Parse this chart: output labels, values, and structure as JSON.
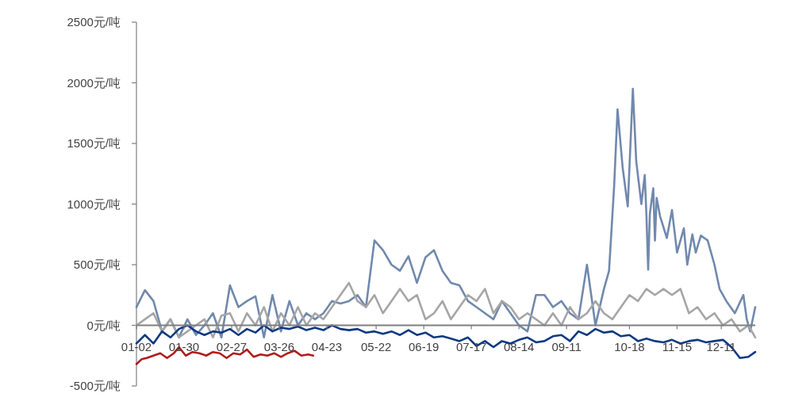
{
  "chart_data": {
    "type": "line",
    "x": [
      "--01-02",
      "--01-07",
      "--01-12",
      "--01-17",
      "--01-22",
      "--01-27",
      "--02-01",
      "--02-06",
      "--02-11",
      "--02-16",
      "--02-21",
      "--02-26",
      "--03-02",
      "--03-07",
      "--03-12",
      "--03-17",
      "--03-22",
      "--03-27",
      "--04-01",
      "--04-06",
      "--04-11",
      "--04-16",
      "--04-21",
      "--04-26",
      "--05-01",
      "--05-06",
      "--05-11",
      "--05-16",
      "--05-21",
      "--05-26",
      "--05-31",
      "--06-05",
      "--06-10",
      "--06-15",
      "--06-20",
      "--06-25",
      "--06-30",
      "--07-05",
      "--07-10",
      "--07-15",
      "--07-20",
      "--07-25",
      "--07-30",
      "--08-04",
      "--08-09",
      "--08-14",
      "--08-19",
      "--08-24",
      "--08-29",
      "--09-03",
      "--09-08",
      "--09-13",
      "--09-18",
      "--09-23",
      "--09-28",
      "--10-03",
      "--10-08",
      "--10-13",
      "--10-18",
      "--10-23",
      "--10-28",
      "--11-02",
      "--11-07",
      "--11-12",
      "--11-17",
      "--11-22",
      "--11-27",
      "--12-02",
      "--12-07",
      "--12-12",
      "--12-17",
      "--12-22",
      "--12-27",
      "--12-31"
    ],
    "series": [
      {
        "color": "#7189ad",
        "x": [
          "--01-02",
          "--01-07",
          "--01-12",
          "--01-17",
          "--01-22",
          "--01-27",
          "--02-01",
          "--02-06",
          "--02-11",
          "--02-16",
          "--02-21",
          "--02-26",
          "--03-02",
          "--03-07",
          "--03-12",
          "--03-17",
          "--03-22",
          "--03-27",
          "--04-01",
          "--04-06",
          "--04-11",
          "--04-16",
          "--04-21",
          "--04-26",
          "--05-01",
          "--05-06",
          "--05-11",
          "--05-16",
          "--05-21",
          "--05-26",
          "--05-31",
          "--06-05",
          "--06-10",
          "--06-15",
          "--06-20",
          "--06-25",
          "--06-30",
          "--07-05",
          "--07-10",
          "--07-15",
          "--07-20",
          "--07-25",
          "--07-30",
          "--08-04",
          "--08-09",
          "--08-14",
          "--08-19",
          "--08-24",
          "--08-29",
          "--09-03",
          "--09-08",
          "--09-13",
          "--09-18",
          "--09-23",
          "--09-28",
          "--10-03",
          "--10-06",
          "--10-09",
          "--10-11",
          "--10-14",
          "--10-17",
          "--10-20",
          "--10-22",
          "--10-25",
          "--10-27",
          "--10-28",
          "--10-29",
          "--10-30",
          "--11-01",
          "--11-02",
          "--11-03",
          "--11-05",
          "--11-09",
          "--11-12",
          "--11-15",
          "--11-19",
          "--11-21",
          "--11-24",
          "--11-26",
          "--11-29",
          "--12-03",
          "--12-07",
          "--12-10",
          "--12-14",
          "--12-19",
          "--12-24",
          "--12-26",
          "--12-28",
          "--12-31"
        ],
        "values": [
          150,
          290,
          200,
          -50,
          50,
          -100,
          50,
          -80,
          0,
          100,
          -100,
          330,
          150,
          200,
          240,
          -100,
          250,
          -50,
          200,
          0,
          100,
          50,
          100,
          200,
          180,
          200,
          250,
          150,
          700,
          620,
          500,
          450,
          570,
          350,
          560,
          620,
          450,
          350,
          330,
          200,
          150,
          100,
          50,
          200,
          100,
          0,
          -50,
          250,
          250,
          150,
          200,
          100,
          50,
          500,
          0,
          300,
          450,
          1150,
          1780,
          1300,
          980,
          1950,
          1350,
          1000,
          1240,
          900,
          460,
          920,
          1130,
          700,
          1050,
          900,
          720,
          950,
          600,
          800,
          500,
          750,
          600,
          740,
          700,
          500,
          300,
          200,
          100,
          250,
          50,
          -50,
          150
        ]
      },
      {
        "color": "#a6a6a6",
        "values": [
          0,
          50,
          100,
          -50,
          50,
          -100,
          -50,
          0,
          50,
          -100,
          80,
          100,
          -50,
          100,
          0,
          150,
          -50,
          100,
          0,
          150,
          0,
          100,
          50,
          150,
          250,
          350,
          200,
          150,
          250,
          100,
          200,
          300,
          200,
          250,
          50,
          100,
          200,
          50,
          150,
          250,
          200,
          300,
          100,
          200,
          150,
          50,
          100,
          50,
          0,
          100,
          0,
          150,
          50,
          100,
          200,
          100,
          50,
          150,
          250,
          200,
          300,
          250,
          300,
          250,
          300,
          100,
          150,
          50,
          100,
          0,
          50,
          -50,
          0,
          -100
        ]
      },
      {
        "color": "#0d3a80",
        "values": [
          -150,
          -80,
          -150,
          -50,
          -100,
          -30,
          0,
          -50,
          -80,
          -50,
          -60,
          -30,
          -80,
          -30,
          -60,
          0,
          -50,
          -20,
          -30,
          -10,
          -40,
          -20,
          -40,
          0,
          -30,
          -40,
          -30,
          -60,
          -50,
          -70,
          -50,
          -80,
          -40,
          -80,
          -60,
          -100,
          -90,
          -110,
          -130,
          -100,
          -170,
          -130,
          -180,
          -130,
          -150,
          -120,
          -100,
          -140,
          -130,
          -90,
          -80,
          -130,
          -50,
          -80,
          -30,
          -60,
          -50,
          -90,
          -80,
          -130,
          -110,
          -130,
          -140,
          -120,
          -150,
          -130,
          -120,
          -140,
          -130,
          -120,
          -180,
          -270,
          -260,
          -220
        ]
      },
      {
        "color": "#b01c1c",
        "x": [
          "--01-02",
          "--01-05",
          "--01-08",
          "--01-12",
          "--01-16",
          "--01-20",
          "--01-24",
          "--01-27",
          "--01-31",
          "--02-04",
          "--02-08",
          "--02-12",
          "--02-16",
          "--02-20",
          "--02-24",
          "--02-28",
          "--03-03",
          "--03-07",
          "--03-11",
          "--03-15",
          "--03-19",
          "--03-23",
          "--03-27",
          "--03-31",
          "--04-04",
          "--04-08",
          "--04-12",
          "--04-15"
        ],
        "values": [
          -320,
          -280,
          -270,
          -250,
          -230,
          -270,
          -230,
          -180,
          -250,
          -220,
          -230,
          -250,
          -220,
          -230,
          -270,
          -230,
          -240,
          -200,
          -260,
          -240,
          -250,
          -230,
          -260,
          -230,
          -210,
          -250,
          -240,
          -250
        ]
      }
    ],
    "xlim": [
      "--01-02",
      "--12-31"
    ],
    "xticks": [
      {
        "value": "--01-02",
        "label": "01-02"
      },
      {
        "value": "--01-30",
        "label": "01-30"
      },
      {
        "value": "--02-27",
        "label": "02-27"
      },
      {
        "value": "--03-26",
        "label": "03-26"
      },
      {
        "value": "--04-23",
        "label": "04-23"
      },
      {
        "value": "--05-22",
        "label": "05-22"
      },
      {
        "value": "--06-19",
        "label": "06-19"
      },
      {
        "value": "--07-17",
        "label": "07-17"
      },
      {
        "value": "--08-14",
        "label": "08-14"
      },
      {
        "value": "--09-11",
        "label": "09-11"
      },
      {
        "value": "--10-18",
        "label": "10-18"
      },
      {
        "value": "--11-15",
        "label": "11-15"
      },
      {
        "value": "--12-11",
        "label": "12-11"
      }
    ],
    "ylim": [
      -500,
      2500
    ],
    "yticks": [
      {
        "value": -500,
        "label": "-500元/吨"
      },
      {
        "value": 0,
        "label": "0元/吨"
      },
      {
        "value": 500,
        "label": "500元/吨"
      },
      {
        "value": 1000,
        "label": "1000元/吨"
      },
      {
        "value": 1500,
        "label": "1500元/吨"
      },
      {
        "value": 2000,
        "label": "2000元/吨"
      },
      {
        "value": 2500,
        "label": "2500元/吨"
      }
    ]
  }
}
